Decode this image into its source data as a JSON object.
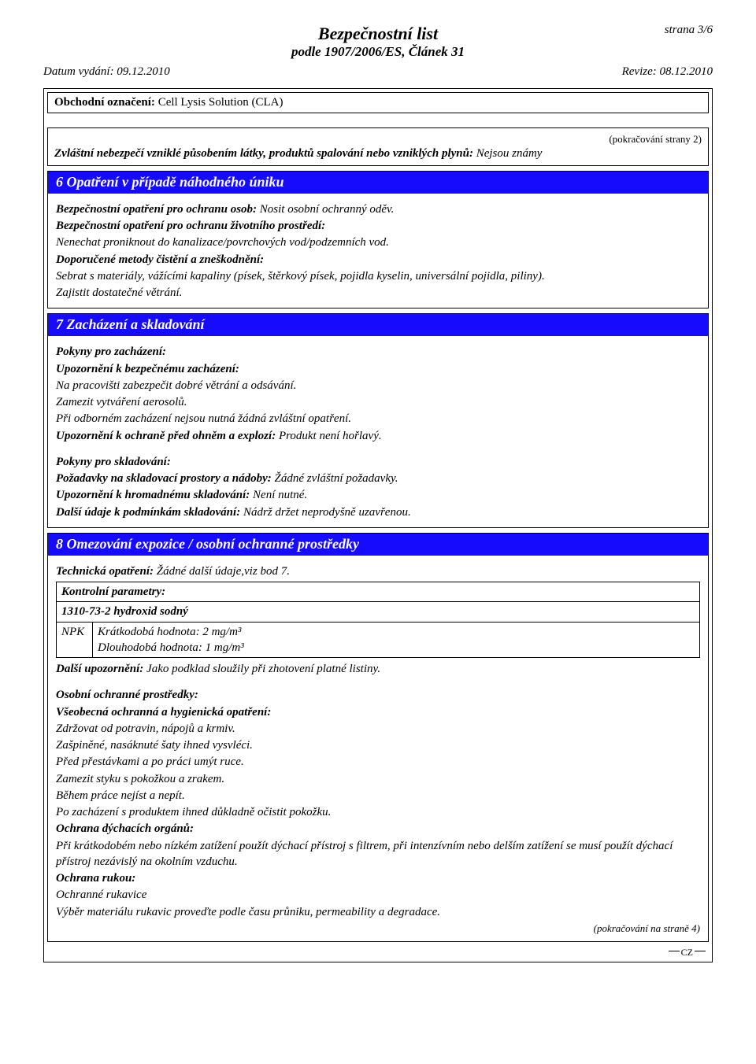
{
  "page": {
    "number_label": "strana 3/6",
    "title": "Bezpečnostní list",
    "subtitle": "podle 1907/2006/ES, Článek 31",
    "issue_date_label": "Datum vydání: 09.12.2010",
    "revision_label": "Revize: 08.12.2010"
  },
  "product": {
    "label": "Obchodní označení:",
    "name": "Cell Lysis Solution (CLA)"
  },
  "continuation_from": "(pokračování  strany 2)",
  "top_section": {
    "label": "Zvláštní nebezpečí vzniklé působením látky, produktů spalování nebo vzniklých plynů:",
    "value": "Nejsou známy"
  },
  "sections": {
    "s6": {
      "title": "6 Opatření v případě náhodného úniku",
      "lines": [
        {
          "bold": "Bezpečnostní opatření pro ochranu osob:",
          "text": " Nosit osobní ochranný oděv."
        },
        {
          "bold": "Bezpečnostní opatření pro ochranu životního prostředí:",
          "text": ""
        },
        {
          "bold": "",
          "text": "Nenechat proniknout do kanalizace/povrchových vod/podzemních vod."
        },
        {
          "bold": "Doporučené metody čistění a zneškodnění:",
          "text": ""
        },
        {
          "bold": "",
          "text": "Sebrat s materiály, vážícími kapaliny (písek, štěrkový písek, pojidla kyselin, universální pojidla, piliny)."
        },
        {
          "bold": "",
          "text": "Zajistit dostatečné větrání."
        }
      ]
    },
    "s7": {
      "title": "7 Zacházení a skladování",
      "group1": [
        {
          "bold": "Pokyny pro zacházení:",
          "text": ""
        },
        {
          "bold": "Upozornění k bezpečnému zacházení:",
          "text": ""
        },
        {
          "bold": "",
          "text": "Na pracovišti zabezpečit dobré větrání a odsávání."
        },
        {
          "bold": "",
          "text": "Zamezit vytváření aerosolů."
        },
        {
          "bold": "",
          "text": "Při odborném zacházení nejsou nutná žádná zvláštní opatření."
        },
        {
          "bold": "Upozornění k ochraně před ohněm a explozí:",
          "text": " Produkt není hořlavý."
        }
      ],
      "group2": [
        {
          "bold": "Pokyny pro skladování:",
          "text": ""
        },
        {
          "bold": "Požadavky na skladovací prostory a nádoby:",
          "text": " Žádné zvláštní požadavky."
        },
        {
          "bold": "Upozornění k hromadnému skladování:",
          "text": " Není nutné."
        },
        {
          "bold": "Další údaje k podmínkám skladování:",
          "text": " Nádrž držet neprodyšně uzavřenou."
        }
      ]
    },
    "s8": {
      "title": "8 Omezování expozice / osobní ochranné prostředky",
      "tech_line": {
        "bold": "Technická opatření:",
        "text": " Žádné další údaje,viz bod 7."
      },
      "npk": {
        "header": "Kontrolní parametry:",
        "cas_line": "1310-73-2 hydroxid sodný",
        "col1": "NPK",
        "short": "Krátkodobá hodnota: 2 mg/m³",
        "long": "Dlouhodobá hodnota: 1 mg/m³"
      },
      "after_table": {
        "bold": "Další upozornění:",
        "text": " Jako podklad sloužily při zhotovení platné listiny."
      },
      "group2": [
        {
          "bold": "Osobní ochranné prostředky:",
          "text": ""
        },
        {
          "bold": "Všeobecná ochranná a hygienická opatření:",
          "text": ""
        },
        {
          "bold": "",
          "text": "Zdržovat od potravin, nápojů a krmiv."
        },
        {
          "bold": "",
          "text": "Zašpiněné, nasáknuté šaty ihned vysvléci."
        },
        {
          "bold": "",
          "text": "Před přestávkami a po práci umýt ruce."
        },
        {
          "bold": "",
          "text": "Zamezit styku s pokožkou a zrakem."
        },
        {
          "bold": "",
          "text": "Během práce nejíst a nepít."
        },
        {
          "bold": "",
          "text": "Po zacházení s produktem ihned důkladně očistit pokožku."
        },
        {
          "bold": "Ochrana dýchacích orgánů:",
          "text": ""
        },
        {
          "bold": "",
          "text": "Při krátkodobém nebo nízkém zatížení použít dýchací přístroj s filtrem, při intenzívním nebo delším zatížení se musí použít dýchací přístroj nezávislý na okolním vzduchu."
        },
        {
          "bold": "Ochrana rukou:",
          "text": ""
        },
        {
          "bold": "",
          "text": "Ochranné rukavice"
        },
        {
          "bold": "",
          "text": "Výběr materiálu rukavic proveďte podle času průniku, permeability a degradace."
        }
      ],
      "continuation_to": "(pokračování na straně 4)"
    }
  },
  "footer_mark": "CZ"
}
